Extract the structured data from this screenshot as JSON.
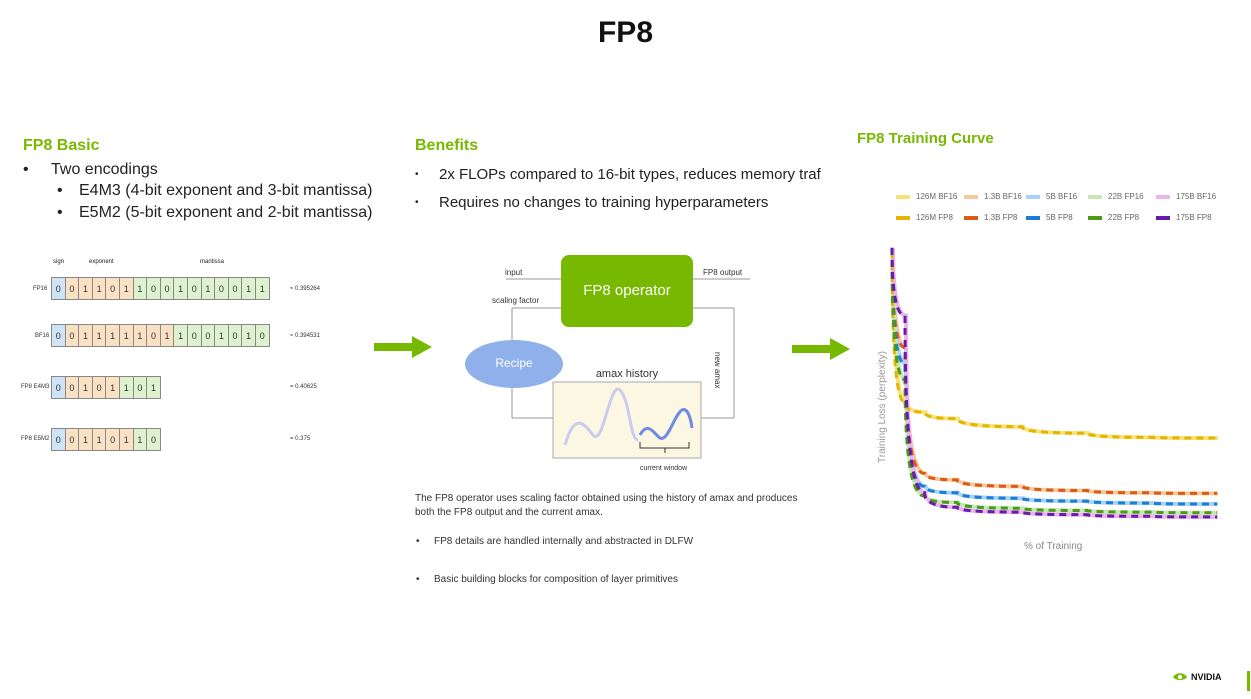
{
  "title": "FP8",
  "basic": {
    "heading": "FP8 Basic",
    "bullet": "Two encodings",
    "sub": [
      "E4M3 (4-bit exponent and 3-bit mantissa)",
      "E5M2 (5-bit exponent and 2-bit mantissa)"
    ],
    "diagram": {
      "headers": {
        "sign": "sign",
        "exponent": "exponent",
        "mantissa": "mantissa"
      },
      "rows": [
        {
          "label": "FP16",
          "bits": [
            "0",
            "0",
            "1",
            "1",
            "0",
            "1",
            "1",
            "0",
            "0",
            "1",
            "0",
            "1",
            "0",
            "0",
            "1",
            "1"
          ],
          "value": "≈ 0.395264"
        },
        {
          "label": "BF16",
          "bits": [
            "0",
            "0",
            "1",
            "1",
            "1",
            "1",
            "1",
            "0",
            "1",
            "1",
            "0",
            "0",
            "1",
            "0",
            "1",
            "0"
          ],
          "value": "≈ 0.394531"
        },
        {
          "label": "FP8 E4M3",
          "bits": [
            "0",
            "0",
            "1",
            "0",
            "1",
            "1",
            "0",
            "1"
          ],
          "value": "= 0.40625"
        },
        {
          "label": "FP8 E5M2",
          "bits": [
            "0",
            "0",
            "1",
            "1",
            "0",
            "1",
            "1",
            "0"
          ],
          "value": "= 0.375"
        }
      ]
    }
  },
  "benefits": {
    "heading": "Benefits",
    "bullets": [
      "2x FLOPs compared to 16-bit types, reduces memory traf",
      "Requires no changes to training hyperparameters"
    ],
    "diagram": {
      "input": "input",
      "output": "FP8 output",
      "scaling": "scaling factor",
      "operator": "FP8 operator",
      "recipe": "Recipe",
      "amax_history": "amax history",
      "new_amax": "new amax",
      "current_window": "current window"
    },
    "caption": "The FP8 operator uses scaling factor obtained using the history of amax and produces both the FP8 output and the current amax.",
    "notes": [
      "FP8 details are handled internally and abstracted in DLFW",
      "Basic building blocks for composition of layer primitives"
    ]
  },
  "curve": {
    "heading": "FP8 Training Curve",
    "logo": "NVIDIA"
  },
  "chart_data": {
    "type": "line",
    "title": "",
    "xlabel": "% of Training",
    "ylabel": "Training Loss (perplexity)",
    "legend_position": "top",
    "grid": false,
    "series": [
      {
        "name": "126M BF16",
        "color": "#f5e37a",
        "style": "solid",
        "x": [
          0,
          4,
          10,
          20,
          40,
          60,
          80,
          100
        ],
        "y": [
          8.5,
          3.8,
          3.5,
          3.3,
          3.05,
          2.85,
          2.72,
          2.7
        ]
      },
      {
        "name": "1.3B BF16",
        "color": "#f4c9a0",
        "style": "solid",
        "x": [
          0,
          4,
          10,
          20,
          40,
          60,
          80,
          100
        ],
        "y": [
          8.6,
          5.5,
          1.6,
          1.4,
          1.2,
          1.07,
          1.0,
          0.98
        ]
      },
      {
        "name": "5B BF16",
        "color": "#a9d3f5",
        "style": "solid",
        "x": [
          0,
          4,
          10,
          20,
          40,
          60,
          80,
          100
        ],
        "y": [
          8.6,
          5.0,
          1.2,
          1.0,
          0.83,
          0.74,
          0.68,
          0.65
        ]
      },
      {
        "name": "22B FP16",
        "color": "#c6e9b4",
        "style": "solid",
        "x": [
          0,
          4,
          10,
          20,
          40,
          60,
          80,
          100
        ],
        "y": [
          8.6,
          4.5,
          0.9,
          0.7,
          0.52,
          0.45,
          0.4,
          0.38
        ]
      },
      {
        "name": "175B BF16",
        "color": "#e8b6ec",
        "style": "solid",
        "x": [
          0,
          4,
          10,
          20,
          40,
          60,
          80,
          100
        ],
        "y": [
          8.6,
          6.5,
          1.0,
          0.55,
          0.4,
          0.32,
          0.27,
          0.25
        ]
      },
      {
        "name": "126M FP8",
        "color": "#e6b400",
        "style": "dashed",
        "x": [
          0,
          4,
          10,
          20,
          40,
          60,
          80,
          100
        ],
        "y": [
          8.5,
          3.8,
          3.5,
          3.3,
          3.05,
          2.85,
          2.72,
          2.7
        ]
      },
      {
        "name": "1.3B FP8",
        "color": "#dd5a10",
        "style": "dashed",
        "x": [
          0,
          4,
          10,
          20,
          40,
          60,
          80,
          100
        ],
        "y": [
          8.6,
          5.5,
          1.6,
          1.4,
          1.2,
          1.07,
          1.0,
          0.98
        ]
      },
      {
        "name": "5B FP8",
        "color": "#1a7ed6",
        "style": "dashed",
        "x": [
          0,
          4,
          10,
          20,
          40,
          60,
          80,
          100
        ],
        "y": [
          8.6,
          5.0,
          1.2,
          1.0,
          0.83,
          0.74,
          0.68,
          0.65
        ]
      },
      {
        "name": "22B FP8",
        "color": "#4c9a1c",
        "style": "dashed",
        "x": [
          0,
          4,
          10,
          20,
          40,
          60,
          80,
          100
        ],
        "y": [
          8.6,
          4.5,
          0.9,
          0.7,
          0.52,
          0.45,
          0.4,
          0.38
        ]
      },
      {
        "name": "175B FP8",
        "color": "#6a1aa8",
        "style": "dashed",
        "x": [
          0,
          4,
          10,
          20,
          40,
          60,
          80,
          100
        ],
        "y": [
          8.6,
          6.5,
          1.0,
          0.55,
          0.4,
          0.32,
          0.27,
          0.25
        ]
      }
    ],
    "xlim": [
      0,
      100
    ],
    "ylim": [
      0,
      9
    ]
  }
}
